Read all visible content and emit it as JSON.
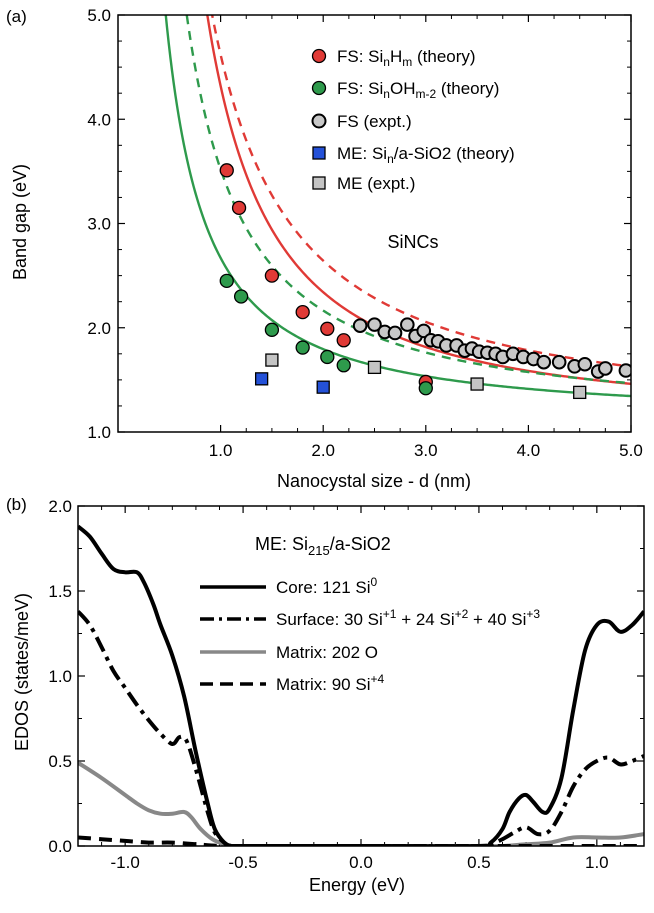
{
  "panel_a": {
    "label": "(a)",
    "annotation": "SiNCs",
    "chart_data": {
      "type": "scatter",
      "title": "",
      "xlabel": "Nanocystal size - d (nm)",
      "ylabel": "Band gap (eV)",
      "xlim": [
        0.0,
        5.0
      ],
      "ylim": [
        1.0,
        5.0
      ],
      "xticks": [
        1.0,
        2.0,
        3.0,
        4.0,
        5.0
      ],
      "yticks": [
        1.0,
        2.0,
        3.0,
        4.0,
        5.0
      ],
      "xtick_labels": [
        "1.0",
        "2.0",
        "3.0",
        "4.0",
        "5.0"
      ],
      "ytick_labels": [
        "1.0",
        "2.0",
        "3.0",
        "4.0",
        "5.0"
      ],
      "legend_position": "top-right",
      "series": [
        {
          "name": "FS: SinHm (theory)",
          "legend_main": "FS: Si",
          "legend_sub1": "n",
          "legend_mid": "H",
          "legend_sub2": "m",
          "legend_tail": " (theory)",
          "marker": "circle",
          "color": "#e03a36",
          "x": [
            1.06,
            1.18,
            1.5,
            1.8,
            2.04,
            2.2,
            3.0
          ],
          "y": [
            3.51,
            3.15,
            2.5,
            2.15,
            1.99,
            1.88,
            1.48
          ]
        },
        {
          "name": "FS: SinOHm-2 (theory)",
          "legend_main": "FS: Si",
          "legend_sub1": "n",
          "legend_mid": "OH",
          "legend_sub2": "m-2",
          "legend_tail": " (theory)",
          "marker": "circle",
          "color": "#2e9a4c",
          "x": [
            1.06,
            1.2,
            1.5,
            1.8,
            2.04,
            2.2,
            3.0
          ],
          "y": [
            2.45,
            2.3,
            1.98,
            1.81,
            1.72,
            1.64,
            1.42
          ]
        },
        {
          "name": "FS (expt.)",
          "marker": "open-circle",
          "color": "#c8c8c8",
          "x": [
            2.36,
            2.5,
            2.6,
            2.7,
            2.82,
            2.9,
            2.98,
            3.05,
            3.12,
            3.2,
            3.3,
            3.38,
            3.45,
            3.52,
            3.6,
            3.68,
            3.75,
            3.85,
            3.95,
            4.05,
            4.15,
            4.3,
            4.45,
            4.55,
            4.68,
            4.75,
            4.95
          ],
          "y": [
            2.02,
            2.03,
            1.96,
            1.95,
            2.03,
            1.92,
            1.97,
            1.88,
            1.87,
            1.83,
            1.83,
            1.78,
            1.8,
            1.77,
            1.76,
            1.75,
            1.72,
            1.75,
            1.72,
            1.7,
            1.67,
            1.67,
            1.63,
            1.65,
            1.58,
            1.61,
            1.59
          ]
        },
        {
          "name": "ME: Sin/a-SiO2 (theory)",
          "legend_main": "ME: Si",
          "legend_sub1": "n",
          "legend_tail": "/a-SiO2 (theory)",
          "marker": "square",
          "color": "#2451d8",
          "x": [
            1.4,
            2.0
          ],
          "y": [
            1.51,
            1.43
          ]
        },
        {
          "name": "ME (expt.)",
          "marker": "square",
          "color": "#c4c4c4",
          "x": [
            1.5,
            2.5,
            3.5,
            4.5
          ],
          "y": [
            1.69,
            1.62,
            1.46,
            1.38
          ]
        }
      ],
      "fit_curves": [
        {
          "name": "FS: SinHm fit",
          "style": "solid",
          "color": "#e03a36",
          "a": 1.12,
          "b": 3.2,
          "n": 1.39
        },
        {
          "name": "FS: SinHm fit extension",
          "style": "dashed",
          "color": "#e03a36",
          "a": 1.12,
          "b": 3.5,
          "n": 1.2
        },
        {
          "name": "FS: SinOHm-2 fit",
          "style": "solid",
          "color": "#2e9a4c",
          "a": 1.12,
          "b": 1.55,
          "n": 1.2
        },
        {
          "name": "FS: SinOHm-2 fit extension",
          "style": "dashed",
          "color": "#2e9a4c",
          "a": 1.12,
          "b": 2.4,
          "n": 1.2
        }
      ]
    }
  },
  "panel_b": {
    "label": "(b)",
    "annotation_prefix": "ME: Si",
    "annotation_sub": "215",
    "annotation_suffix": "/a-SiO2",
    "chart_data": {
      "type": "line",
      "title": "",
      "xlabel": "Energy (eV)",
      "ylabel": "EDOS (states/meV)",
      "xlim": [
        -1.2,
        1.2
      ],
      "ylim": [
        0.0,
        2.0
      ],
      "xticks": [
        -1.0,
        -0.5,
        0.0,
        0.5,
        1.0
      ],
      "yticks": [
        0.0,
        0.5,
        1.0,
        1.5,
        2.0
      ],
      "xtick_labels": [
        "-1.0",
        "-0.5",
        "0.0",
        "0.5",
        "1.0"
      ],
      "ytick_labels": [
        "0.0",
        "0.5",
        "1.0",
        "1.5",
        "2.0"
      ],
      "legend_position": "top-center",
      "series": [
        {
          "name": "Core: 121 Si0",
          "legend_text": "Core: 121 Si",
          "legend_sup": "0",
          "style": "solid",
          "color": "#000000",
          "x": [
            -1.2,
            -1.15,
            -1.1,
            -1.05,
            -1.0,
            -0.95,
            -0.92,
            -0.88,
            -0.85,
            -0.8,
            -0.75,
            -0.7,
            -0.65,
            -0.62,
            -0.58,
            -0.55,
            -0.5,
            0.0,
            0.5,
            0.55,
            0.6,
            0.63,
            0.67,
            0.7,
            0.73,
            0.77,
            0.8,
            0.85,
            0.9,
            0.95,
            1.0,
            1.05,
            1.1,
            1.15,
            1.2
          ],
          "y": [
            1.88,
            1.82,
            1.72,
            1.63,
            1.61,
            1.61,
            1.55,
            1.42,
            1.3,
            1.12,
            0.88,
            0.55,
            0.25,
            0.1,
            0.02,
            0.0,
            0.0,
            0.0,
            0.0,
            0.02,
            0.1,
            0.2,
            0.28,
            0.3,
            0.26,
            0.2,
            0.22,
            0.4,
            0.8,
            1.15,
            1.3,
            1.32,
            1.26,
            1.3,
            1.38
          ]
        },
        {
          "name": "Surface: 30 Si+1 + 24 Si+2 + 40 Si+3",
          "legend_parts": [
            "Surface: 30 Si",
            "+1",
            " + 24 Si",
            "+2",
            " + 40 Si",
            "+3"
          ],
          "style": "dashdot",
          "color": "#000000",
          "x": [
            -1.2,
            -1.15,
            -1.1,
            -1.05,
            -1.0,
            -0.95,
            -0.9,
            -0.85,
            -0.8,
            -0.77,
            -0.74,
            -0.7,
            -0.65,
            -0.62,
            -0.58,
            -0.55,
            -0.5,
            0.0,
            0.5,
            0.55,
            0.6,
            0.65,
            0.7,
            0.75,
            0.8,
            0.85,
            0.9,
            0.95,
            1.0,
            1.05,
            1.1,
            1.15,
            1.2
          ],
          "y": [
            1.38,
            1.3,
            1.17,
            1.03,
            0.93,
            0.83,
            0.74,
            0.66,
            0.6,
            0.64,
            0.62,
            0.45,
            0.2,
            0.08,
            0.02,
            0.0,
            0.0,
            0.0,
            0.0,
            0.01,
            0.04,
            0.08,
            0.11,
            0.07,
            0.09,
            0.2,
            0.35,
            0.45,
            0.5,
            0.52,
            0.48,
            0.5,
            0.53
          ]
        },
        {
          "name": "Matrix: 202 O",
          "legend_text": "Matrix: 202 O",
          "style": "solid",
          "color": "#888888",
          "x": [
            -1.2,
            -1.1,
            -1.0,
            -0.95,
            -0.9,
            -0.85,
            -0.8,
            -0.75,
            -0.72,
            -0.68,
            -0.63,
            -0.58,
            -0.55,
            -0.5,
            0.0,
            0.5,
            0.6,
            0.7,
            0.8,
            0.9,
            1.0,
            1.1,
            1.2
          ],
          "y": [
            0.49,
            0.4,
            0.3,
            0.25,
            0.21,
            0.19,
            0.19,
            0.2,
            0.17,
            0.1,
            0.04,
            0.01,
            0.0,
            0.0,
            0.0,
            0.0,
            0.0,
            0.01,
            0.02,
            0.05,
            0.05,
            0.05,
            0.07
          ]
        },
        {
          "name": "Matrix: 90 Si+4",
          "legend_text": "Matrix: 90 Si",
          "legend_sup": "+4",
          "style": "dashed",
          "color": "#000000",
          "x": [
            -1.2,
            -1.1,
            -1.0,
            -0.9,
            -0.8,
            -0.7,
            -0.6,
            -0.5,
            0.0,
            0.5,
            0.6,
            0.7,
            0.8,
            0.9,
            1.0,
            1.1,
            1.2
          ],
          "y": [
            0.05,
            0.04,
            0.03,
            0.02,
            0.02,
            0.01,
            0.0,
            0.0,
            0.0,
            0.0,
            0.0,
            0.0,
            0.0,
            0.0,
            0.0,
            0.0,
            0.0
          ]
        }
      ]
    }
  }
}
